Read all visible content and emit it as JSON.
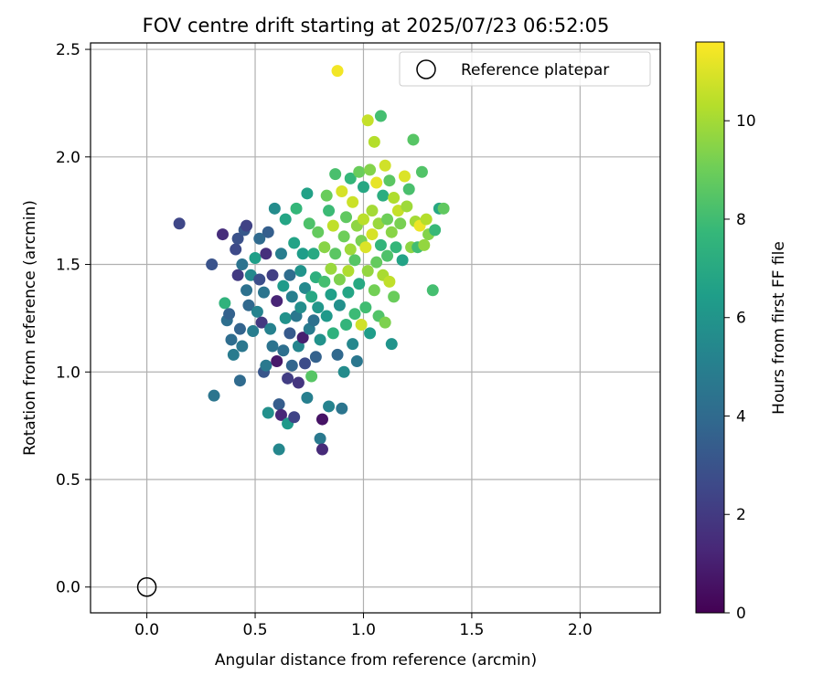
{
  "chart_data": {
    "type": "scatter",
    "title": "FOV centre drift starting at 2025/07/23 06:52:05",
    "xlabel": "Angular distance from reference (arcmin)",
    "ylabel": "Rotation from reference (arcmin)",
    "xlim": [
      -0.26,
      2.37
    ],
    "ylim": [
      -0.12,
      2.53
    ],
    "x_ticks": [
      "0.0",
      "0.5",
      "1.0",
      "1.5",
      "2.0"
    ],
    "x_tick_values": [
      0.0,
      0.5,
      1.0,
      1.5,
      2.0
    ],
    "y_ticks": [
      "0.0",
      "0.5",
      "1.0",
      "1.5",
      "2.0",
      "2.5"
    ],
    "y_tick_values": [
      0.0,
      0.5,
      1.0,
      1.5,
      2.0,
      2.5
    ],
    "grid": true,
    "legend": {
      "position": "top-right",
      "entries": [
        {
          "label": "Reference platepar",
          "marker": "open-circle"
        }
      ]
    },
    "reference_point": {
      "x": 0.0,
      "y": 0.0
    },
    "colorbar": {
      "label": "Hours from first FF file",
      "range": [
        0,
        11.6
      ],
      "ticks": [
        "0",
        "2",
        "4",
        "6",
        "8",
        "10"
      ],
      "tick_values": [
        0,
        2,
        4,
        6,
        8,
        10
      ],
      "colormap": "viridis",
      "colormap_stops": [
        "#440154",
        "#482878",
        "#3e4989",
        "#31688e",
        "#26828e",
        "#1f9e89",
        "#35b779",
        "#6ece58",
        "#b5de2b",
        "#fde725"
      ]
    },
    "points": [
      [
        0.15,
        1.69,
        2.5
      ],
      [
        0.3,
        1.5,
        3.0
      ],
      [
        0.31,
        0.89,
        4.5
      ],
      [
        0.35,
        1.64,
        1.5
      ],
      [
        0.36,
        1.32,
        7.5
      ],
      [
        0.37,
        1.24,
        4.2
      ],
      [
        0.38,
        1.27,
        3.6
      ],
      [
        0.39,
        1.15,
        4.1
      ],
      [
        0.4,
        1.08,
        4.8
      ],
      [
        0.41,
        1.57,
        2.6
      ],
      [
        0.42,
        1.45,
        2.0
      ],
      [
        0.42,
        1.62,
        2.9
      ],
      [
        0.43,
        0.96,
        4.0
      ],
      [
        0.43,
        1.2,
        3.7
      ],
      [
        0.44,
        1.12,
        4.6
      ],
      [
        0.44,
        1.5,
        4.4
      ],
      [
        0.45,
        1.66,
        3.2
      ],
      [
        0.46,
        1.68,
        2.3
      ],
      [
        0.46,
        1.38,
        4.3
      ],
      [
        0.47,
        1.31,
        3.9
      ],
      [
        0.48,
        1.45,
        5.5
      ],
      [
        0.49,
        1.19,
        4.9
      ],
      [
        0.5,
        1.53,
        6.5
      ],
      [
        0.51,
        1.28,
        5.2
      ],
      [
        0.52,
        1.62,
        4.0
      ],
      [
        0.52,
        1.43,
        2.8
      ],
      [
        0.53,
        1.23,
        1.9
      ],
      [
        0.54,
        1.37,
        4.5
      ],
      [
        0.54,
        1.0,
        3.1
      ],
      [
        0.55,
        1.03,
        4.7
      ],
      [
        0.55,
        1.55,
        1.6
      ],
      [
        0.56,
        0.81,
        5.8
      ],
      [
        0.56,
        1.65,
        3.5
      ],
      [
        0.57,
        1.2,
        5.1
      ],
      [
        0.58,
        1.12,
        4.4
      ],
      [
        0.58,
        1.45,
        2.2
      ],
      [
        0.59,
        1.76,
        5.6
      ],
      [
        0.6,
        1.33,
        1.2
      ],
      [
        0.6,
        1.05,
        0.8
      ],
      [
        0.61,
        0.64,
        5.4
      ],
      [
        0.61,
        0.85,
        3.4
      ],
      [
        0.62,
        1.55,
        4.9
      ],
      [
        0.62,
        0.8,
        1.3
      ],
      [
        0.63,
        1.1,
        4.2
      ],
      [
        0.63,
        1.4,
        6.3
      ],
      [
        0.64,
        1.71,
        6.8
      ],
      [
        0.64,
        1.25,
        5.9
      ],
      [
        0.65,
        0.76,
        6.2
      ],
      [
        0.65,
        0.97,
        2.1
      ],
      [
        0.66,
        1.45,
        4.1
      ],
      [
        0.66,
        1.18,
        3.3
      ],
      [
        0.67,
        1.35,
        5.0
      ],
      [
        0.67,
        1.03,
        3.8
      ],
      [
        0.68,
        0.79,
        2.4
      ],
      [
        0.68,
        1.6,
        6.7
      ],
      [
        0.69,
        1.76,
        7.7
      ],
      [
        0.69,
        1.26,
        4.6
      ],
      [
        0.7,
        1.12,
        5.3
      ],
      [
        0.7,
        0.95,
        1.8
      ],
      [
        0.71,
        1.47,
        6.0
      ],
      [
        0.71,
        1.3,
        5.7
      ],
      [
        0.72,
        1.16,
        1.0
      ],
      [
        0.72,
        1.55,
        6.4
      ],
      [
        0.73,
        1.04,
        2.7
      ],
      [
        0.73,
        1.39,
        5.5
      ],
      [
        0.74,
        1.83,
        6.6
      ],
      [
        0.74,
        0.88,
        5.0
      ],
      [
        0.75,
        1.2,
        4.8
      ],
      [
        0.75,
        1.69,
        8.3
      ],
      [
        0.76,
        1.35,
        6.9
      ],
      [
        0.76,
        0.98,
        8.5
      ],
      [
        0.77,
        1.55,
        7.0
      ],
      [
        0.77,
        1.24,
        4.3
      ],
      [
        0.78,
        1.07,
        3.6
      ],
      [
        0.78,
        1.44,
        7.3
      ],
      [
        0.79,
        1.65,
        8.8
      ],
      [
        0.79,
        1.3,
        6.1
      ],
      [
        0.8,
        0.69,
        4.7
      ],
      [
        0.8,
        1.15,
        5.9
      ],
      [
        0.81,
        0.64,
        1.4
      ],
      [
        0.81,
        0.78,
        0.6
      ],
      [
        0.82,
        1.42,
        8.1
      ],
      [
        0.82,
        1.58,
        9.5
      ],
      [
        0.83,
        1.26,
        6.2
      ],
      [
        0.83,
        1.82,
        8.9
      ],
      [
        0.84,
        0.84,
        5.2
      ],
      [
        0.84,
        1.75,
        7.9
      ],
      [
        0.85,
        1.48,
        9.8
      ],
      [
        0.85,
        1.36,
        6.5
      ],
      [
        0.86,
        1.68,
        10.5
      ],
      [
        0.86,
        1.18,
        7.4
      ],
      [
        0.87,
        1.55,
        8.6
      ],
      [
        0.87,
        1.92,
        8.2
      ],
      [
        0.88,
        1.08,
        3.9
      ],
      [
        0.88,
        2.4,
        11.4
      ],
      [
        0.89,
        1.43,
        9.3
      ],
      [
        0.89,
        1.31,
        5.8
      ],
      [
        0.9,
        1.84,
        10.9
      ],
      [
        0.9,
        0.83,
        4.5
      ],
      [
        0.91,
        1.63,
        9.0
      ],
      [
        0.91,
        1.0,
        5.6
      ],
      [
        0.92,
        1.22,
        7.6
      ],
      [
        0.92,
        1.72,
        8.7
      ],
      [
        0.93,
        1.47,
        10.2
      ],
      [
        0.93,
        1.37,
        6.8
      ],
      [
        0.94,
        1.9,
        7.7
      ],
      [
        0.94,
        1.57,
        9.9
      ],
      [
        0.95,
        1.13,
        5.4
      ],
      [
        0.95,
        1.79,
        10.7
      ],
      [
        0.96,
        1.52,
        8.5
      ],
      [
        0.96,
        1.27,
        7.9
      ],
      [
        0.97,
        1.68,
        9.6
      ],
      [
        0.97,
        1.05,
        4.6
      ],
      [
        0.98,
        1.93,
        8.9
      ],
      [
        0.98,
        1.41,
        7.0
      ],
      [
        0.99,
        1.22,
        10.8
      ],
      [
        0.99,
        1.61,
        9.2
      ],
      [
        1.0,
        1.71,
        10.4
      ],
      [
        1.0,
        1.86,
        6.9
      ],
      [
        1.01,
        1.58,
        11.0
      ],
      [
        1.01,
        1.3,
        8.0
      ],
      [
        1.02,
        2.17,
        10.6
      ],
      [
        1.02,
        1.47,
        9.7
      ],
      [
        1.03,
        1.94,
        9.4
      ],
      [
        1.03,
        1.18,
        6.4
      ],
      [
        1.04,
        1.75,
        10.0
      ],
      [
        1.04,
        1.64,
        10.9
      ],
      [
        1.05,
        1.38,
        9.1
      ],
      [
        1.05,
        2.07,
        10.3
      ],
      [
        1.06,
        1.51,
        8.8
      ],
      [
        1.06,
        1.88,
        11.2
      ],
      [
        1.07,
        1.26,
        8.4
      ],
      [
        1.07,
        1.69,
        9.8
      ],
      [
        1.08,
        1.59,
        7.6
      ],
      [
        1.08,
        2.19,
        8.1
      ],
      [
        1.09,
        1.82,
        7.2
      ],
      [
        1.09,
        1.45,
        10.1
      ],
      [
        1.1,
        1.96,
        10.8
      ],
      [
        1.1,
        1.23,
        9.3
      ],
      [
        1.11,
        1.71,
        9.0
      ],
      [
        1.11,
        1.54,
        8.3
      ],
      [
        1.12,
        1.42,
        10.5
      ],
      [
        1.12,
        1.89,
        8.6
      ],
      [
        1.13,
        1.13,
        6.0
      ],
      [
        1.13,
        1.65,
        9.5
      ],
      [
        1.14,
        1.35,
        8.9
      ],
      [
        1.14,
        1.81,
        10.2
      ],
      [
        1.15,
        1.58,
        7.7
      ],
      [
        1.16,
        1.75,
        10.6
      ],
      [
        1.17,
        1.69,
        9.2
      ],
      [
        1.18,
        1.52,
        6.7
      ],
      [
        1.19,
        1.91,
        11.0
      ],
      [
        1.2,
        1.77,
        9.9
      ],
      [
        1.21,
        1.85,
        8.2
      ],
      [
        1.22,
        1.58,
        9.6
      ],
      [
        1.23,
        2.08,
        8.5
      ],
      [
        1.24,
        1.7,
        10.0
      ],
      [
        1.25,
        1.58,
        8.0
      ],
      [
        1.26,
        1.68,
        11.3
      ],
      [
        1.27,
        1.93,
        8.4
      ],
      [
        1.28,
        1.59,
        9.7
      ],
      [
        1.29,
        1.71,
        10.3
      ],
      [
        1.3,
        1.64,
        9.4
      ],
      [
        1.32,
        1.38,
        8.1
      ],
      [
        1.33,
        1.66,
        7.8
      ],
      [
        1.35,
        1.76,
        6.9
      ],
      [
        1.37,
        1.76,
        8.7
      ]
    ]
  }
}
